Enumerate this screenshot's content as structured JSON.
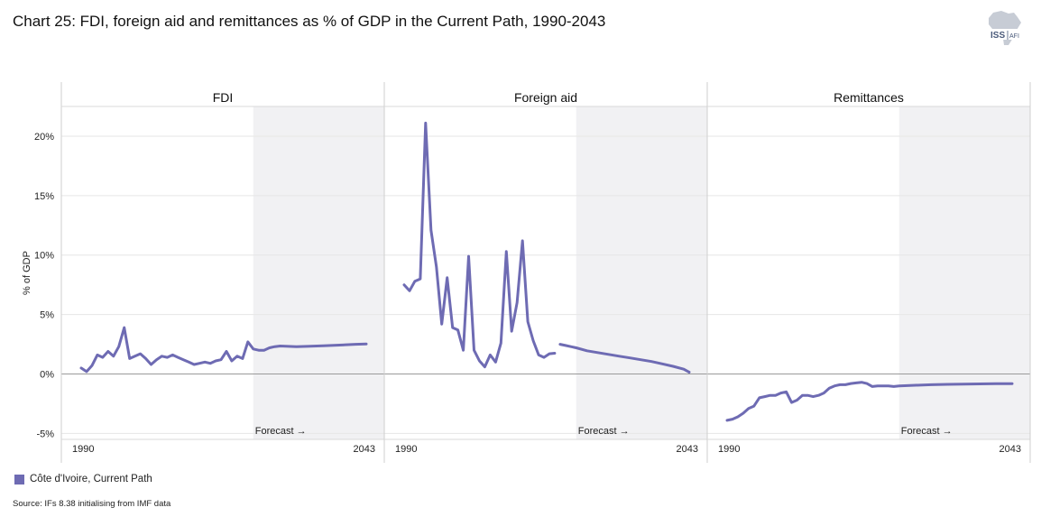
{
  "title": "Chart 25: FDI, foreign aid and remittances as % of GDP in the Current Path, 1990-2043",
  "logo": {
    "text_main": "ISS",
    "text_sub": "AFI"
  },
  "legend": {
    "label": "Côte d'Ivoire, Current Path",
    "color": "#6e6bb3"
  },
  "source": "Source: IFs 8.38 initialising from IMF data",
  "colors": {
    "series": "#6e6bb3",
    "forecast_shade": "#f1f1f3",
    "grid": "#e6e6e6",
    "zero": "#9a9a9a"
  },
  "chart_data": {
    "type": "line",
    "ylabel": "% of GDP",
    "ylim": [
      -5.5,
      22.5
    ],
    "yticks": [
      -5,
      0,
      5,
      10,
      15,
      20
    ],
    "ytick_labels": [
      "-5%",
      "0%",
      "5%",
      "10%",
      "15%",
      "20%"
    ],
    "xlim": [
      1990,
      2043
    ],
    "xtick_labels": [
      "1990",
      "2043"
    ],
    "forecast_start": 2022,
    "forecast_label": "Forecast →",
    "panels": [
      {
        "name": "FDI",
        "series": [
          {
            "name": "Côte d'Ivoire, Current Path",
            "segments": [
              [
                [
                  1990,
                  0.5
                ],
                [
                  1991,
                  0.2
                ],
                [
                  1992,
                  0.7
                ],
                [
                  1993,
                  1.6
                ],
                [
                  1994,
                  1.4
                ],
                [
                  1995,
                  1.9
                ],
                [
                  1996,
                  1.5
                ],
                [
                  1997,
                  2.3
                ],
                [
                  1998,
                  3.9
                ],
                [
                  1999,
                  1.3
                ],
                [
                  2000,
                  1.5
                ],
                [
                  2001,
                  1.7
                ],
                [
                  2002,
                  1.3
                ],
                [
                  2003,
                  0.8
                ],
                [
                  2004,
                  1.2
                ],
                [
                  2005,
                  1.5
                ],
                [
                  2006,
                  1.4
                ],
                [
                  2007,
                  1.6
                ],
                [
                  2008,
                  1.4
                ],
                [
                  2009,
                  1.2
                ],
                [
                  2010,
                  1.0
                ],
                [
                  2011,
                  0.8
                ],
                [
                  2012,
                  0.9
                ],
                [
                  2013,
                  1.0
                ],
                [
                  2014,
                  0.9
                ],
                [
                  2015,
                  1.1
                ],
                [
                  2016,
                  1.2
                ],
                [
                  2017,
                  1.9
                ],
                [
                  2018,
                  1.1
                ],
                [
                  2019,
                  1.5
                ],
                [
                  2020,
                  1.3
                ],
                [
                  2021,
                  2.7
                ],
                [
                  2022,
                  2.1
                ],
                [
                  2023,
                  2.0
                ],
                [
                  2024,
                  2.0
                ],
                [
                  2025,
                  2.2
                ],
                [
                  2026,
                  2.3
                ],
                [
                  2027,
                  2.35
                ],
                [
                  2028,
                  2.33
                ],
                [
                  2030,
                  2.3
                ],
                [
                  2032,
                  2.32
                ],
                [
                  2035,
                  2.37
                ],
                [
                  2038,
                  2.43
                ],
                [
                  2041,
                  2.5
                ],
                [
                  2043,
                  2.53
                ]
              ]
            ]
          }
        ]
      },
      {
        "name": "Foreign aid",
        "series": [
          {
            "name": "Côte d'Ivoire, Current Path",
            "segments": [
              [
                [
                  1990,
                  7.5
                ],
                [
                  1991,
                  7.0
                ],
                [
                  1992,
                  7.8
                ],
                [
                  1993,
                  8.0
                ],
                [
                  1994,
                  21.1
                ],
                [
                  1995,
                  12.1
                ],
                [
                  1996,
                  9.0
                ],
                [
                  1997,
                  4.2
                ],
                [
                  1998,
                  8.1
                ],
                [
                  1999,
                  3.9
                ],
                [
                  2000,
                  3.7
                ],
                [
                  2001,
                  2.0
                ],
                [
                  2002,
                  9.9
                ],
                [
                  2003,
                  2.0
                ],
                [
                  2004,
                  1.1
                ],
                [
                  2005,
                  0.6
                ],
                [
                  2006,
                  1.6
                ],
                [
                  2007,
                  1.0
                ],
                [
                  2008,
                  2.6
                ],
                [
                  2009,
                  10.3
                ],
                [
                  2010,
                  3.6
                ],
                [
                  2011,
                  6.0
                ],
                [
                  2012,
                  11.2
                ],
                [
                  2013,
                  4.4
                ],
                [
                  2014,
                  2.8
                ],
                [
                  2015,
                  1.6
                ],
                [
                  2016,
                  1.4
                ],
                [
                  2017,
                  1.7
                ],
                [
                  2018,
                  1.75
                ]
              ],
              [
                [
                  2019,
                  2.5
                ],
                [
                  2020,
                  2.4
                ],
                [
                  2021,
                  2.3
                ],
                [
                  2022,
                  2.2
                ],
                [
                  2024,
                  1.95
                ],
                [
                  2026,
                  1.8
                ],
                [
                  2028,
                  1.65
                ],
                [
                  2030,
                  1.5
                ],
                [
                  2032,
                  1.35
                ],
                [
                  2034,
                  1.2
                ],
                [
                  2036,
                  1.05
                ],
                [
                  2038,
                  0.85
                ],
                [
                  2040,
                  0.65
                ],
                [
                  2042,
                  0.4
                ],
                [
                  2043,
                  0.15
                ]
              ]
            ]
          }
        ]
      },
      {
        "name": "Remittances",
        "series": [
          {
            "name": "Côte d'Ivoire, Current Path",
            "segments": [
              [
                [
                  1990,
                  -3.9
                ],
                [
                  1991,
                  -3.8
                ],
                [
                  1992,
                  -3.6
                ],
                [
                  1993,
                  -3.3
                ],
                [
                  1994,
                  -2.9
                ],
                [
                  1995,
                  -2.7
                ],
                [
                  1996,
                  -2.0
                ],
                [
                  1997,
                  -1.9
                ],
                [
                  1998,
                  -1.8
                ],
                [
                  1999,
                  -1.8
                ],
                [
                  2000,
                  -1.6
                ],
                [
                  2001,
                  -1.5
                ],
                [
                  2002,
                  -2.4
                ],
                [
                  2003,
                  -2.2
                ],
                [
                  2004,
                  -1.8
                ],
                [
                  2005,
                  -1.8
                ],
                [
                  2006,
                  -1.9
                ],
                [
                  2007,
                  -1.8
                ],
                [
                  2008,
                  -1.6
                ],
                [
                  2009,
                  -1.2
                ],
                [
                  2010,
                  -1.0
                ],
                [
                  2011,
                  -0.9
                ],
                [
                  2012,
                  -0.9
                ],
                [
                  2013,
                  -0.8
                ],
                [
                  2014,
                  -0.75
                ],
                [
                  2015,
                  -0.7
                ],
                [
                  2016,
                  -0.8
                ],
                [
                  2017,
                  -1.05
                ],
                [
                  2018,
                  -1.0
                ],
                [
                  2019,
                  -1.0
                ],
                [
                  2020,
                  -1.0
                ],
                [
                  2021,
                  -1.05
                ],
                [
                  2022,
                  -1.0
                ],
                [
                  2025,
                  -0.95
                ],
                [
                  2028,
                  -0.9
                ],
                [
                  2031,
                  -0.87
                ],
                [
                  2034,
                  -0.85
                ],
                [
                  2037,
                  -0.83
                ],
                [
                  2040,
                  -0.82
                ],
                [
                  2043,
                  -0.82
                ]
              ]
            ]
          }
        ]
      }
    ]
  }
}
